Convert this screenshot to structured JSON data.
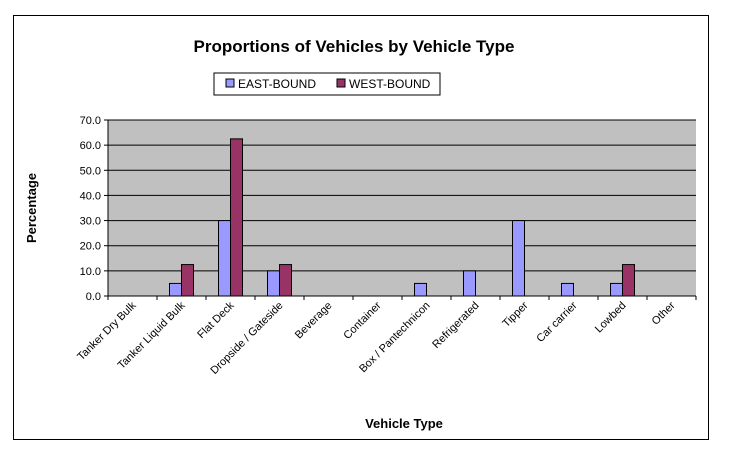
{
  "chart_data": {
    "type": "bar",
    "title": "Proportions of Vehicles by Vehicle Type",
    "xlabel": "Vehicle Type",
    "ylabel": "Percentage",
    "ylim": [
      0,
      70
    ],
    "ytick_step": 10,
    "ytick_labels": [
      "0.0",
      "10.0",
      "20.0",
      "30.0",
      "40.0",
      "50.0",
      "60.0",
      "70.0"
    ],
    "grid": true,
    "legend_position": "top-center",
    "categories": [
      "Tanker Dry Bulk",
      "Tanker Liquid Bulk",
      "Flat Deck",
      "Dropside / Gateside",
      "Beverage",
      "Container",
      "Box / Pantechnicon",
      "Refrigerated",
      "Tipper",
      "Car carrier",
      "Lowbed",
      "Other"
    ],
    "series": [
      {
        "name": "EAST-BOUND",
        "color": "#9999FF",
        "values": [
          0,
          5,
          30,
          10,
          0,
          0,
          5,
          10,
          30,
          5,
          5,
          0
        ]
      },
      {
        "name": "WEST-BOUND",
        "color": "#993366",
        "values": [
          0,
          12.5,
          62.5,
          12.5,
          0,
          0,
          0,
          0,
          0,
          0,
          12.5,
          0
        ]
      }
    ],
    "colors": {
      "plot_background": "#C0C0C0",
      "gridline": "#000000",
      "frame": "#000000"
    }
  }
}
